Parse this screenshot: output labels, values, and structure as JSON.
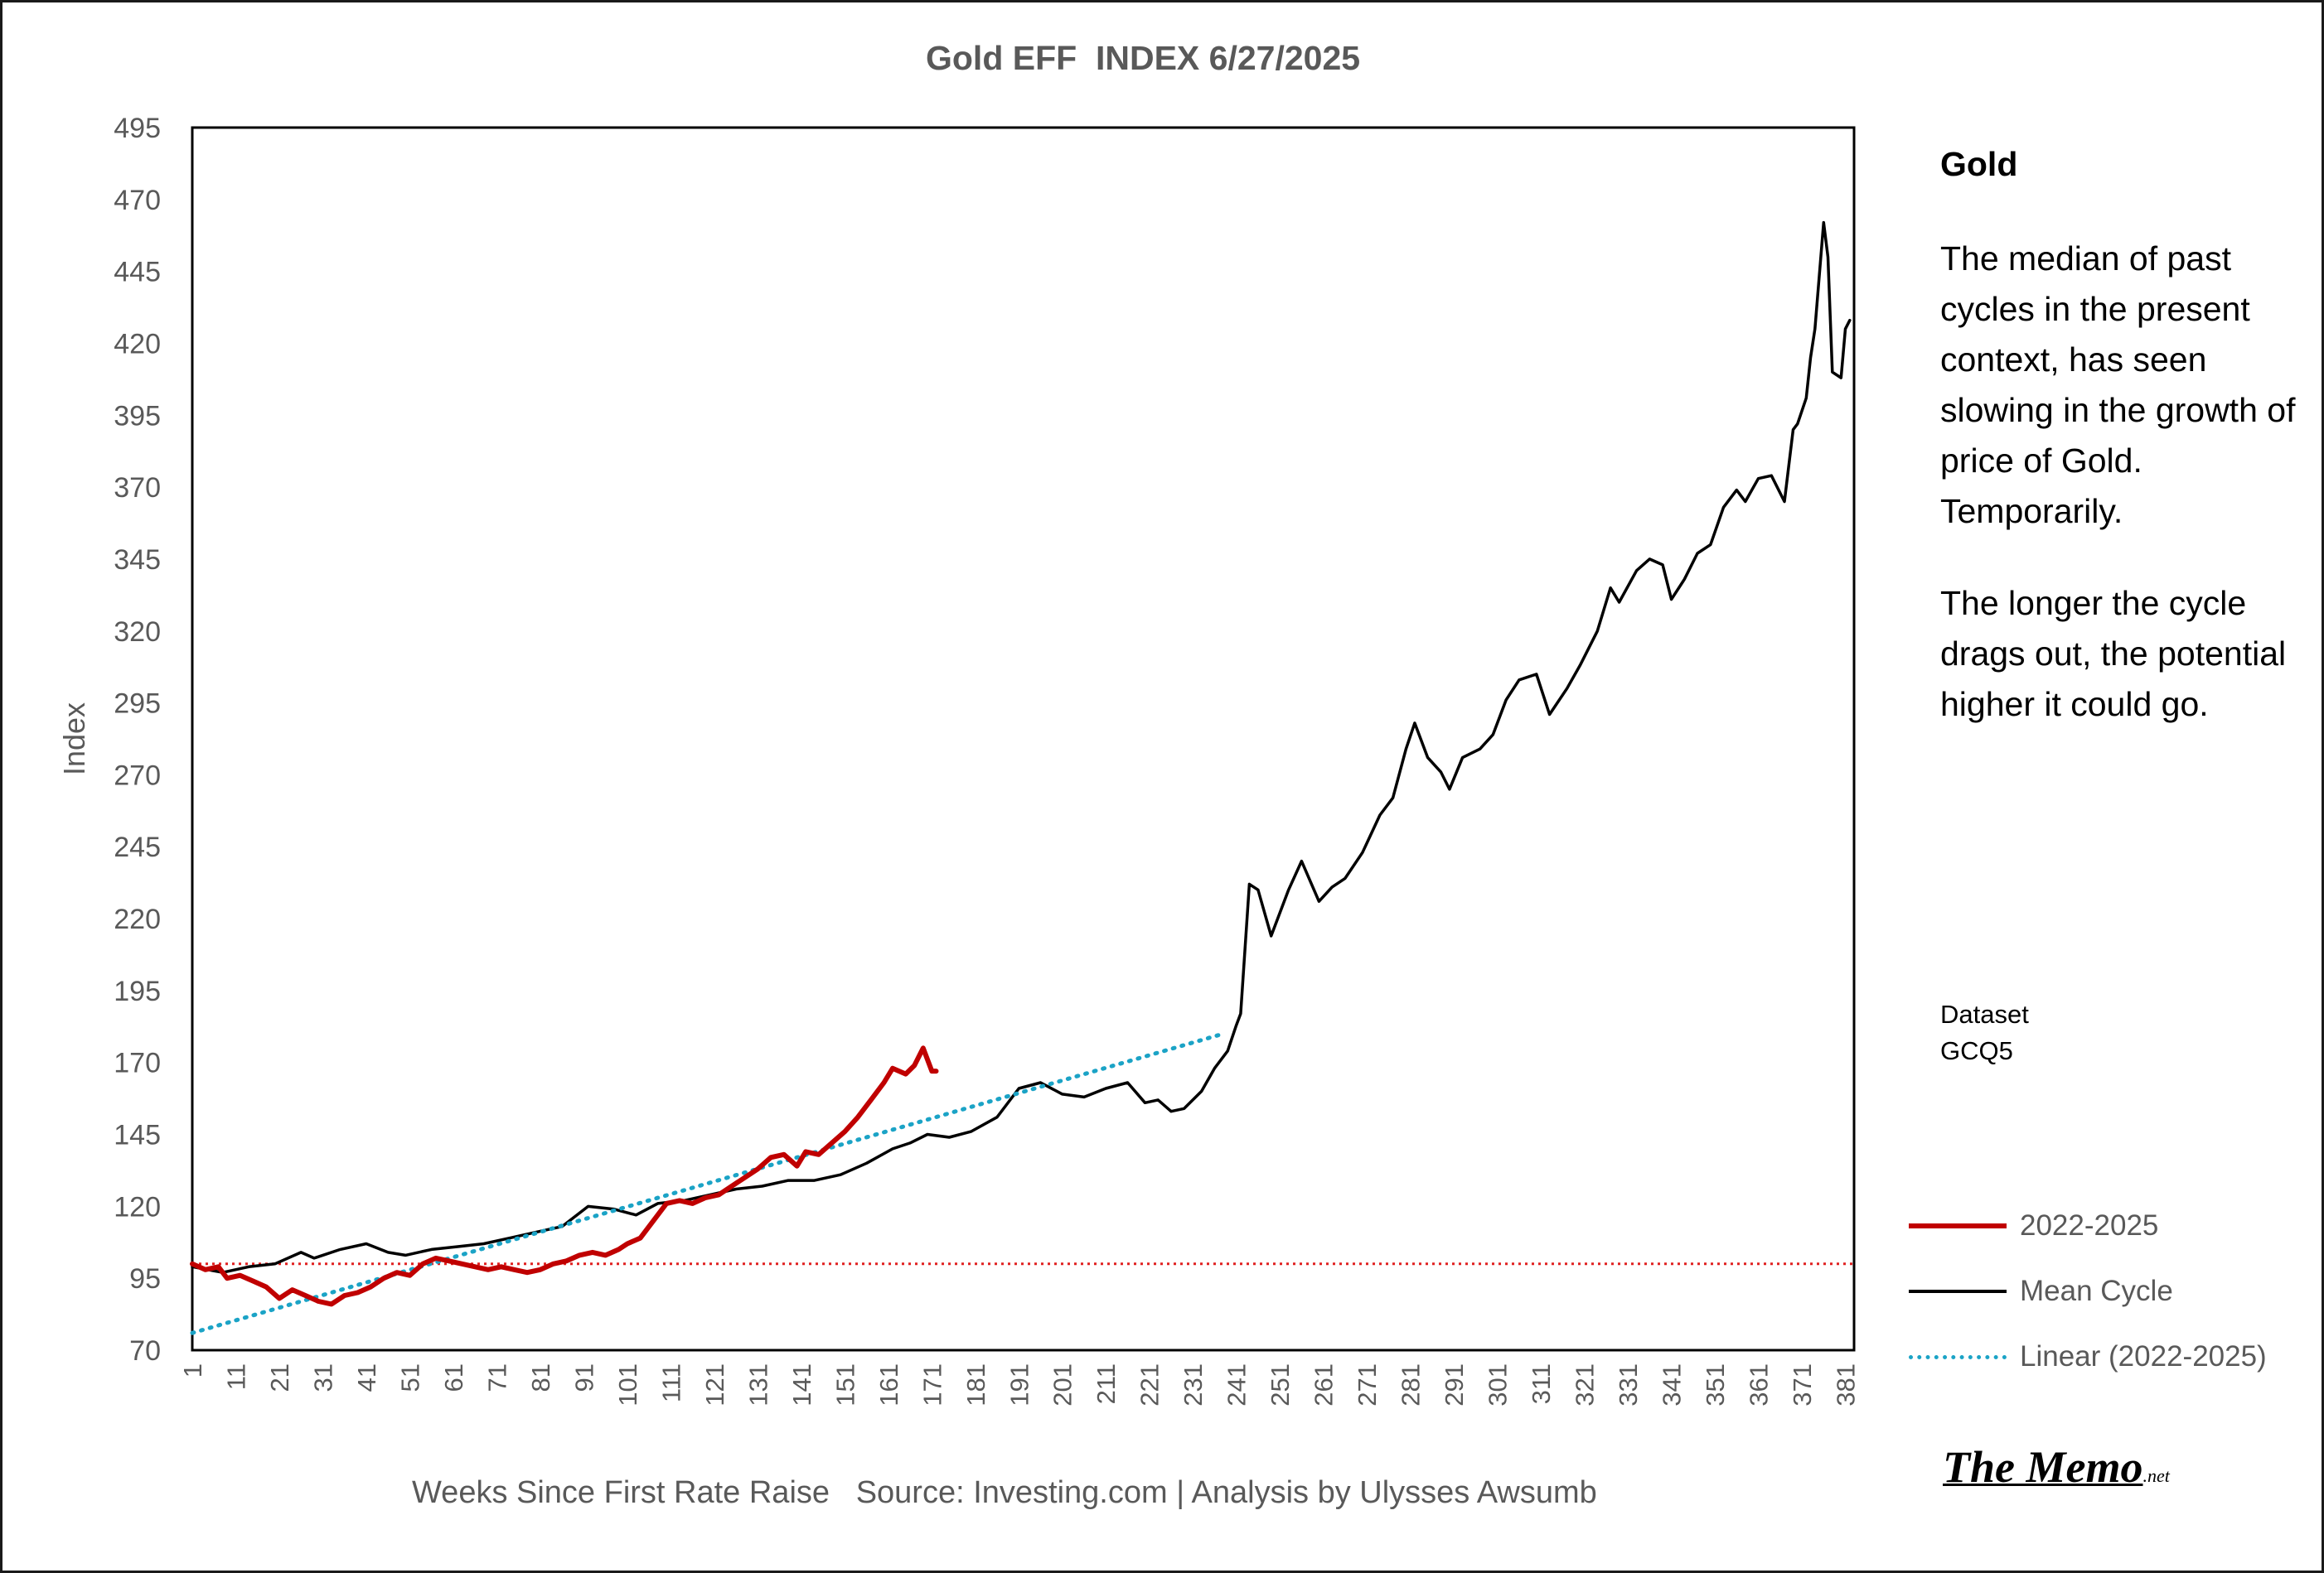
{
  "chart_data": {
    "type": "line",
    "title": "Gold EFF  INDEX 6/27/2025",
    "xlabel": "Weeks Since First Rate Raise   Source: Investing.com | Analysis by Ulysses Awsumb",
    "ylabel": "Index",
    "ylim": [
      70,
      495
    ],
    "yticks": [
      70,
      95,
      120,
      145,
      170,
      195,
      220,
      245,
      270,
      295,
      320,
      345,
      370,
      395,
      420,
      445,
      470,
      495
    ],
    "xlim": [
      1,
      383
    ],
    "xticks": [
      1,
      11,
      21,
      31,
      41,
      51,
      61,
      71,
      81,
      91,
      101,
      111,
      121,
      131,
      141,
      151,
      161,
      171,
      181,
      191,
      201,
      211,
      221,
      231,
      241,
      251,
      261,
      271,
      281,
      291,
      301,
      311,
      321,
      331,
      341,
      351,
      361,
      371,
      381
    ],
    "grid": false,
    "legend_position": "right",
    "reference_line": {
      "y": 100,
      "color": "#e02020",
      "style": "dotted"
    },
    "series": [
      {
        "name": "2022-2025",
        "color": "#c00000",
        "style": "solid",
        "x": [
          1,
          4,
          7,
          9,
          12,
          15,
          18,
          21,
          24,
          27,
          30,
          33,
          36,
          39,
          42,
          45,
          48,
          51,
          54,
          57,
          60,
          63,
          66,
          69,
          72,
          75,
          78,
          81,
          84,
          87,
          90,
          93,
          96,
          99,
          101,
          104,
          107,
          110,
          113,
          116,
          119,
          122,
          125,
          128,
          131,
          134,
          137,
          140,
          142,
          145,
          148,
          151,
          154,
          157,
          160,
          162,
          165,
          167,
          169,
          171,
          172
        ],
        "values": [
          100,
          98,
          99,
          95,
          96,
          94,
          92,
          88,
          91,
          89,
          87,
          86,
          89,
          90,
          92,
          95,
          97,
          96,
          100,
          102,
          101,
          100,
          99,
          98,
          99,
          98,
          97,
          98,
          100,
          101,
          103,
          104,
          103,
          105,
          107,
          109,
          115,
          121,
          122,
          121,
          123,
          124,
          127,
          130,
          133,
          137,
          138,
          134,
          139,
          138,
          142,
          146,
          151,
          157,
          163,
          168,
          166,
          169,
          175,
          167,
          167
        ]
      },
      {
        "name": "Mean Cycle",
        "color": "#000000",
        "style": "solid",
        "x": [
          1,
          8,
          14,
          20,
          26,
          29,
          35,
          41,
          46,
          50,
          56,
          62,
          68,
          74,
          80,
          86,
          92,
          98,
          103,
          108,
          114,
          120,
          126,
          132,
          138,
          144,
          150,
          156,
          162,
          166,
          170,
          175,
          180,
          186,
          191,
          196,
          201,
          206,
          211,
          216,
          220,
          223,
          226,
          229,
          233,
          236,
          239,
          241,
          242,
          244,
          246,
          249,
          253,
          256,
          260,
          263,
          266,
          270,
          274,
          277,
          280,
          282,
          285,
          288,
          290,
          293,
          297,
          300,
          303,
          306,
          310,
          313,
          317,
          320,
          324,
          327,
          329,
          333,
          336,
          339,
          341,
          344,
          347,
          350,
          353,
          356,
          358,
          361,
          364,
          367,
          369,
          370,
          372,
          373,
          374,
          376,
          377,
          378,
          380,
          381,
          382
        ],
        "values": [
          99,
          97,
          99,
          100,
          104,
          102,
          105,
          107,
          104,
          103,
          105,
          106,
          107,
          109,
          111,
          113,
          120,
          119,
          117,
          121,
          122,
          124,
          126,
          127,
          129,
          129,
          131,
          135,
          140,
          142,
          145,
          144,
          146,
          151,
          161,
          163,
          159,
          158,
          161,
          163,
          156,
          157,
          153,
          154,
          160,
          168,
          174,
          183,
          187,
          232,
          230,
          214,
          230,
          240,
          226,
          231,
          234,
          243,
          256,
          262,
          279,
          288,
          276,
          271,
          265,
          276,
          279,
          284,
          296,
          303,
          305,
          291,
          300,
          308,
          320,
          335,
          330,
          341,
          345,
          343,
          331,
          338,
          347,
          350,
          363,
          369,
          365,
          373,
          374,
          365,
          390,
          392,
          401,
          415,
          425,
          462,
          450,
          410,
          408,
          425,
          428
        ]
      },
      {
        "name": "Linear (2022-2025)",
        "color": "#1ba3c6",
        "style": "dotted",
        "x": [
          1,
          238
        ],
        "values": [
          76,
          180
        ]
      }
    ]
  },
  "side_note": {
    "heading": "Gold",
    "paragraph_1": "The median of past cycles in the present context, has seen slowing in the growth of price of Gold. Temporarily.",
    "paragraph_2": "The longer the cycle drags out, the potential higher it could go.",
    "dataset_label": "Dataset",
    "dataset_code": "GCQ5"
  },
  "brand": {
    "name": "The Memo",
    "suffix": ".net"
  }
}
